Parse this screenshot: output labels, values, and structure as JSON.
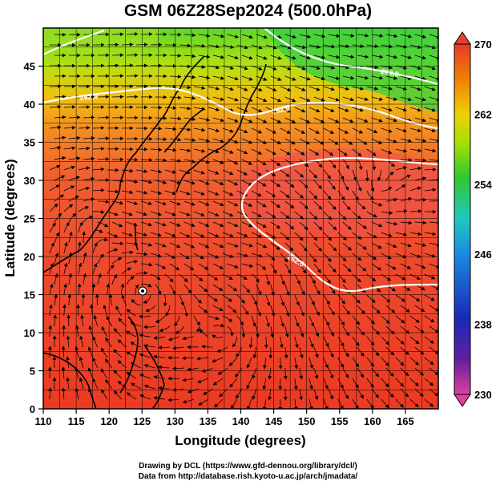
{
  "title": "GSM 06Z28Sep2024 (500.0hPa)",
  "chart_data": {
    "type": "heatmap",
    "title": "GSM 06Z28Sep2024 (500.0hPa)",
    "xlabel": "Longitude (degrees)",
    "ylabel": "Latitude  (degrees)",
    "xlim": [
      110,
      170
    ],
    "ylim": [
      0,
      50
    ],
    "x_ticks": [
      "110",
      "115",
      "120",
      "125",
      "130",
      "135",
      "140",
      "145",
      "150",
      "155",
      "160",
      "165"
    ],
    "y_ticks": [
      "0",
      "5",
      "10",
      "15",
      "20",
      "25",
      "30",
      "35",
      "40",
      "45"
    ],
    "colorbar": {
      "min": 230,
      "max": 270,
      "ticks": [
        "270",
        "262",
        "254",
        "246",
        "238",
        "230"
      ],
      "colors": [
        "#d43a8c",
        "#5a2a9a",
        "#1a2ab8",
        "#1a8ae0",
        "#20c8c0",
        "#30c830",
        "#a8e000",
        "#f0d000",
        "#f09000",
        "#e84020"
      ]
    },
    "contour_labels": [
      "270.0",
      "262.0",
      "262.0",
      "262.0"
    ],
    "features": [
      "streamlines",
      "coastlines",
      "grid"
    ],
    "typhoon_center": {
      "lon": 125,
      "lat": 17.5
    }
  },
  "footer": {
    "line1": "Drawing by DCL (https://www.gfd-dennou.org/library/dcl/)",
    "line2": "Data from http://database.rish.kyoto-u.ac.jp/arch/jmadata/"
  }
}
